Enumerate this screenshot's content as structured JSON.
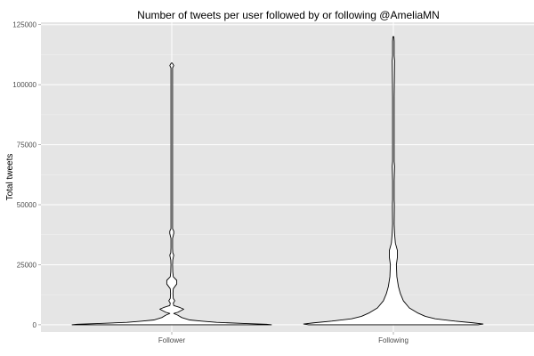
{
  "chart_data": {
    "type": "violin",
    "title": "Number of tweets per user followed by or following @AmeliaMN",
    "xlabel": "",
    "ylabel": "Total tweets",
    "ylim": [
      -3000,
      126000
    ],
    "yticks": [
      0,
      25000,
      50000,
      75000,
      100000,
      125000
    ],
    "ytick_labels": [
      "0",
      "25000",
      "50000",
      "75000",
      "100000",
      "125000"
    ],
    "categories": [
      "Follower",
      "Following"
    ],
    "colors": {
      "panel_bg": "#e5e5e5",
      "grid_major": "#ffffff",
      "grid_minor": "#f2f2f2",
      "violin_fill": "#ffffff",
      "violin_stroke": "#000000"
    },
    "series": [
      {
        "name": "Follower",
        "ymax": 109000,
        "profile": [
          [
            0,
            1.0
          ],
          [
            200,
            0.95
          ],
          [
            500,
            0.75
          ],
          [
            1000,
            0.45
          ],
          [
            1500,
            0.3
          ],
          [
            2000,
            0.18
          ],
          [
            3000,
            0.1
          ],
          [
            4000,
            0.06
          ],
          [
            4700,
            0.02
          ],
          [
            5200,
            0.06
          ],
          [
            6500,
            0.12
          ],
          [
            7200,
            0.08
          ],
          [
            8000,
            0.02
          ],
          [
            9000,
            0.015
          ],
          [
            10000,
            0.03
          ],
          [
            11000,
            0.015
          ],
          [
            13000,
            0.012
          ],
          [
            15000,
            0.015
          ],
          [
            17000,
            0.05
          ],
          [
            18500,
            0.05
          ],
          [
            20000,
            0.015
          ],
          [
            22000,
            0.01
          ],
          [
            25000,
            0.008
          ],
          [
            27000,
            0.01
          ],
          [
            29000,
            0.02
          ],
          [
            30000,
            0.01
          ],
          [
            32000,
            0.008
          ],
          [
            36000,
            0.008
          ],
          [
            38000,
            0.02
          ],
          [
            39000,
            0.02
          ],
          [
            40000,
            0.008
          ],
          [
            45000,
            0.008
          ],
          [
            60000,
            0.008
          ],
          [
            80000,
            0.008
          ],
          [
            100000,
            0.008
          ],
          [
            107000,
            0.008
          ],
          [
            108000,
            0.02
          ],
          [
            109000,
            0.005
          ]
        ]
      },
      {
        "name": "Following",
        "ymax": 120000,
        "profile": [
          [
            0,
            0.85
          ],
          [
            300,
            0.9
          ],
          [
            800,
            0.8
          ],
          [
            1500,
            0.62
          ],
          [
            2500,
            0.42
          ],
          [
            3500,
            0.32
          ],
          [
            5000,
            0.24
          ],
          [
            7000,
            0.16
          ],
          [
            10000,
            0.1
          ],
          [
            13000,
            0.07
          ],
          [
            16000,
            0.05
          ],
          [
            20000,
            0.035
          ],
          [
            25000,
            0.03
          ],
          [
            28000,
            0.04
          ],
          [
            31000,
            0.04
          ],
          [
            34000,
            0.02
          ],
          [
            38000,
            0.012
          ],
          [
            42000,
            0.008
          ],
          [
            50000,
            0.01
          ],
          [
            52000,
            0.008
          ],
          [
            60000,
            0.008
          ],
          [
            66000,
            0.012
          ],
          [
            68000,
            0.008
          ],
          [
            80000,
            0.008
          ],
          [
            95000,
            0.008
          ],
          [
            110000,
            0.012
          ],
          [
            112000,
            0.008
          ],
          [
            118000,
            0.008
          ],
          [
            120000,
            0.005
          ]
        ]
      }
    ]
  }
}
